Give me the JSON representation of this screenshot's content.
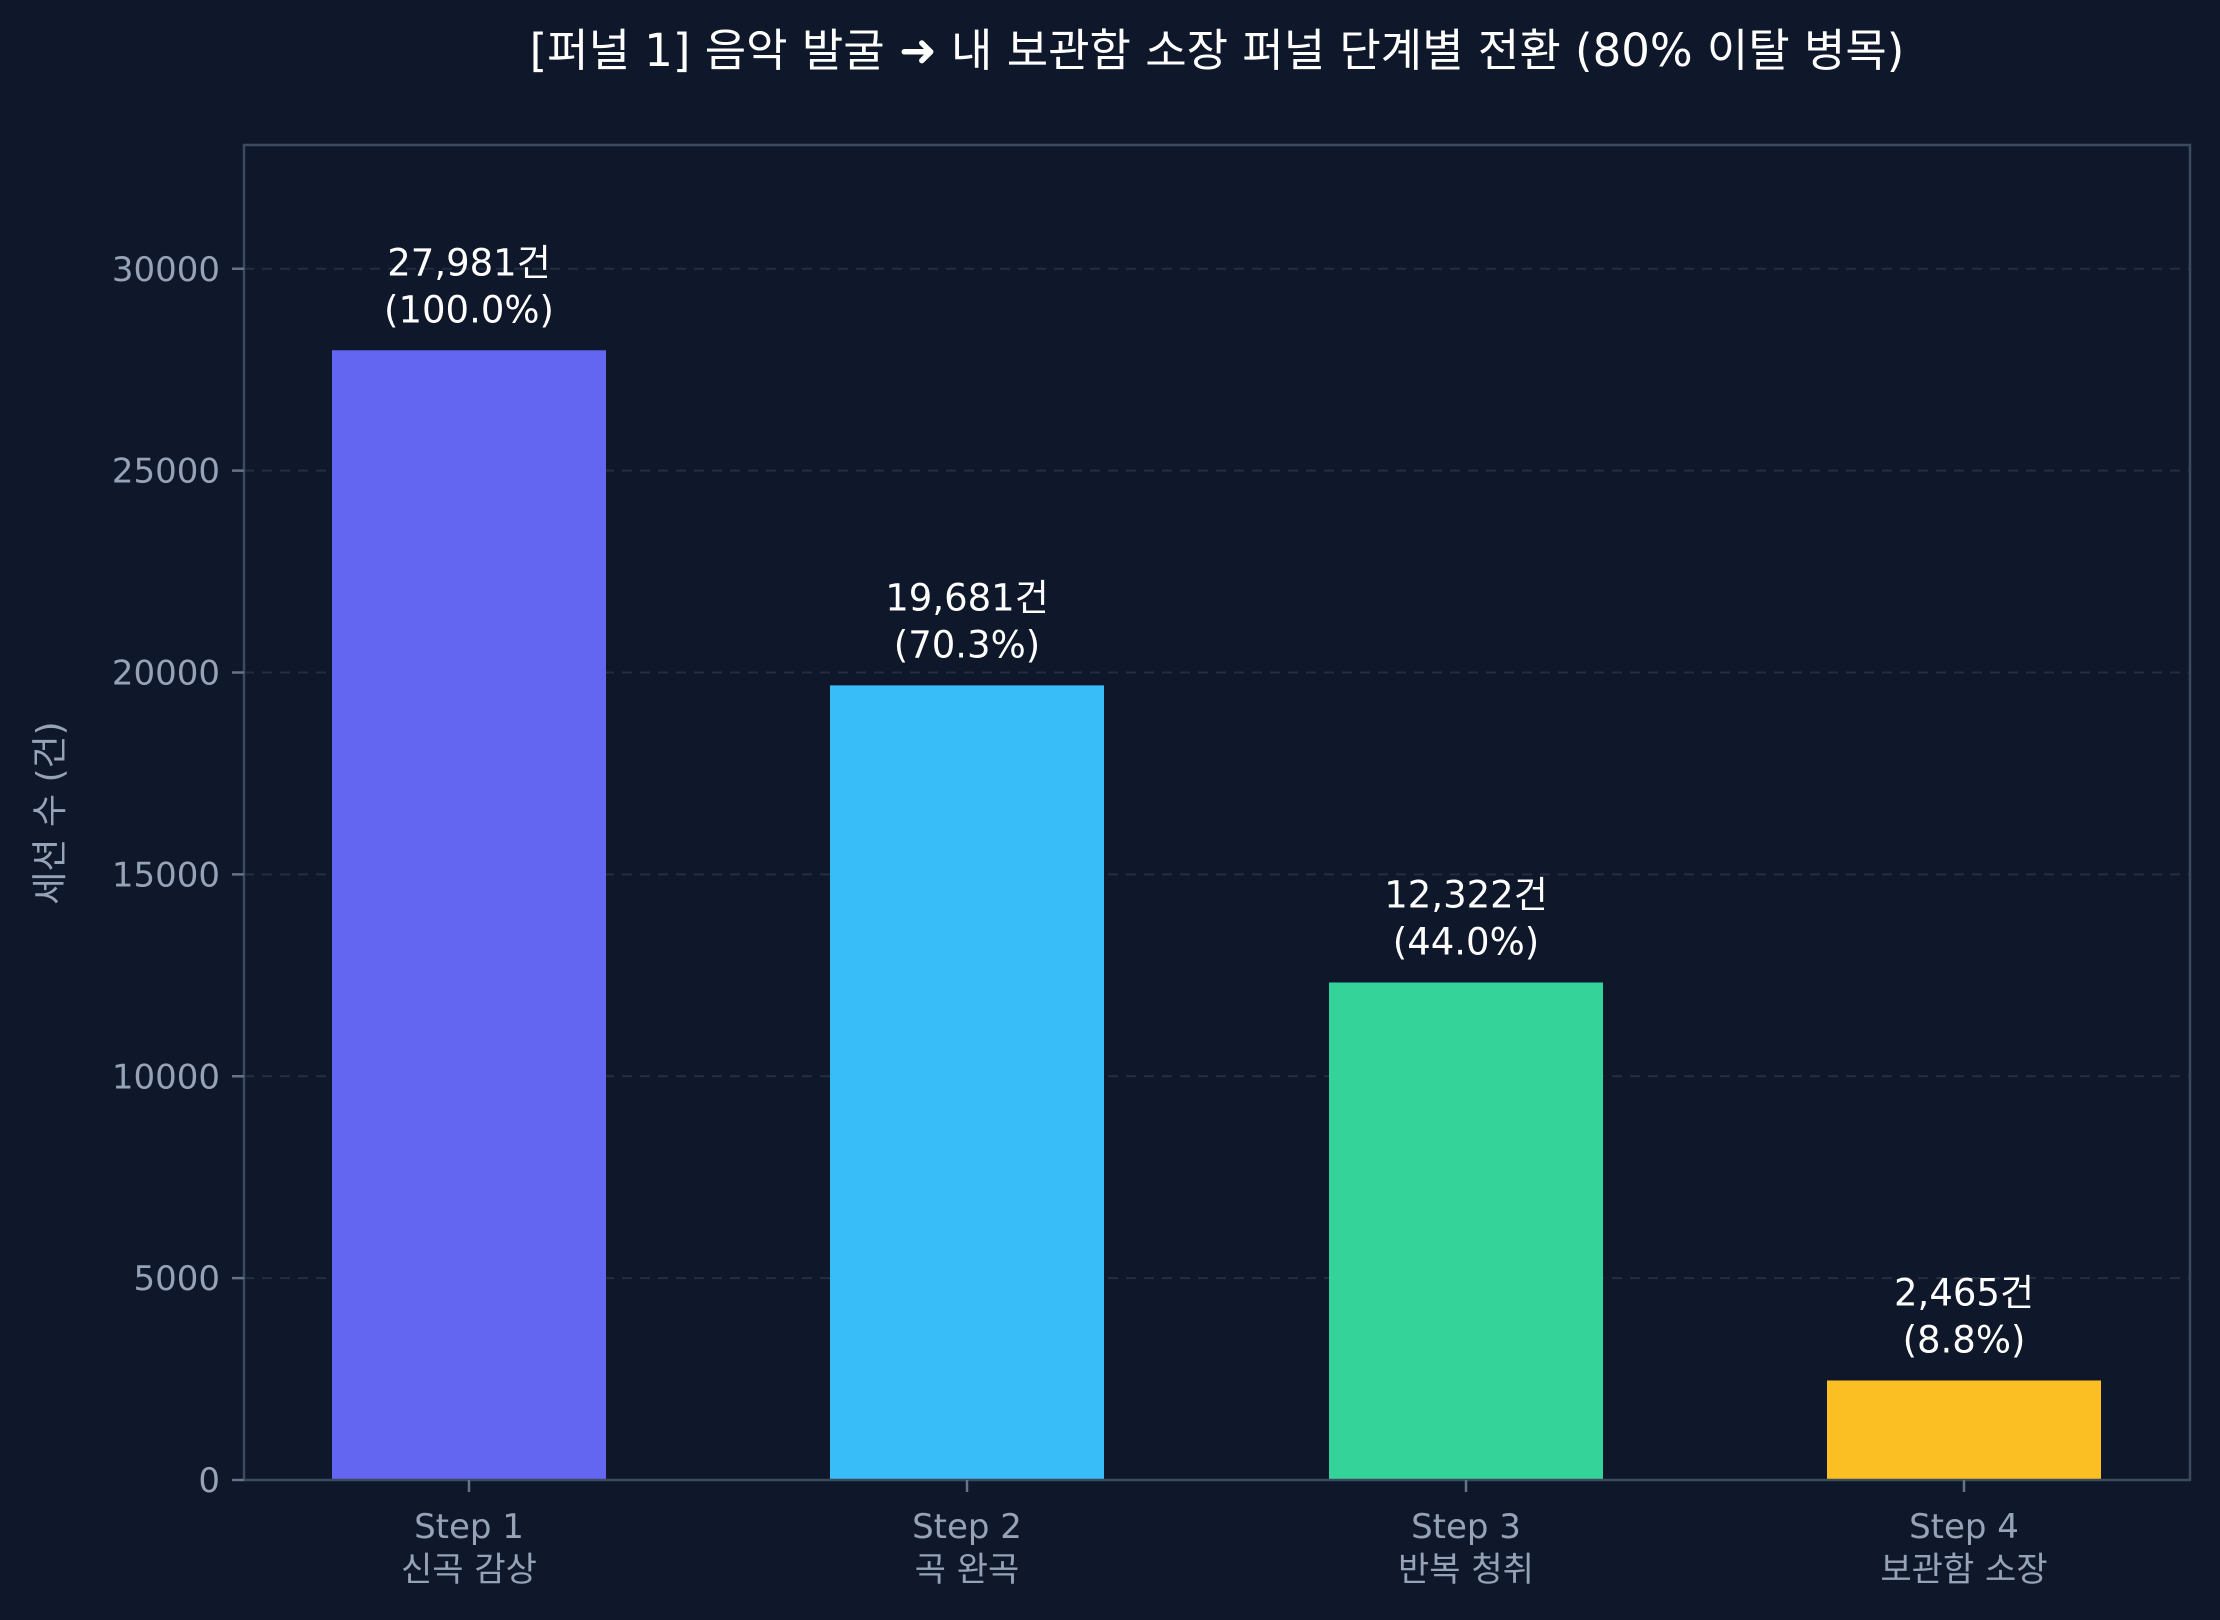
{
  "chart_data": {
    "type": "bar",
    "title": "[퍼널 1] 음악 발굴 ➜ 내 보관함 소장 퍼널 단계별 전환 (80% 이탈 병목)",
    "xlabel": "",
    "ylabel": "세션 수 (건)",
    "ylim": [
      0,
      33000
    ],
    "yticks": [
      0,
      5000,
      10000,
      15000,
      20000,
      25000,
      30000
    ],
    "grid": true,
    "categories": [
      [
        "Step 1",
        "신곡 감상"
      ],
      [
        "Step 2",
        "곡 완곡"
      ],
      [
        "Step 3",
        "반복 청취"
      ],
      [
        "Step 4",
        "보관함 소장"
      ]
    ],
    "values": [
      27981,
      19681,
      12322,
      2465
    ],
    "data_labels": [
      [
        "27,981건",
        "(100.0%)"
      ],
      [
        "19,681건",
        "(70.3%)"
      ],
      [
        "12,322건",
        "(44.0%)"
      ],
      [
        "2,465건",
        "(8.8%)"
      ]
    ],
    "colors": [
      "#6366f1",
      "#38bdf8",
      "#34d399",
      "#fbbf24"
    ],
    "background": "#0f172a"
  }
}
